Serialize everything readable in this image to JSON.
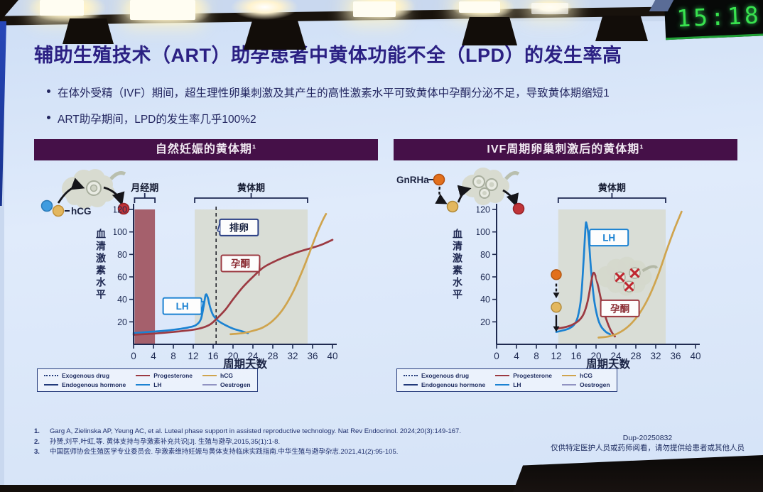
{
  "environment": {
    "clock_time": "15:18"
  },
  "slide": {
    "title": "辅助生殖技术（ART）助孕患者中黄体功能不全（LPD）的发生率高",
    "bullets": [
      "在体外受精（IVF）期间，超生理性卵巢刺激及其产生的高性激素水平可致黄体中孕酮分泌不足，导致黄体期缩短1",
      "ART助孕期间，LPD的发生率几乎100%2"
    ],
    "references": [
      {
        "num": "1.",
        "text": "Garg A, Zielinska AP, Yeung AC, et al. Luteal phase support in assisted reproductive technology. Nat Rev Endocrinol. 2024;20(3):149-167."
      },
      {
        "num": "2.",
        "text": "孙赟,刘平,叶虹,等. 黄体支持与孕激素补充共识[J]. 生殖与避孕,2015,35(1):1-8."
      },
      {
        "num": "3.",
        "text": "中国医师协会生殖医学专业委员会. 孕激素维持妊娠与黄体支持临床实践指南.中华生殖与避孕杂志.2021,41(2):95-105."
      }
    ],
    "footer": {
      "code": "Dup-20250832",
      "audience": "仅供特定医护人员或药师阅看，请勿提供给患者或其他人员"
    }
  },
  "panels": [
    {
      "header": "自然妊娠的黄体期¹",
      "illustration": {
        "label": "hCG"
      }
    },
    {
      "header": "IVF周期卵巢刺激后的黄体期¹",
      "illustration": {
        "label": "GnRHa"
      }
    }
  ],
  "legend_items": [
    {
      "label": "Exogenous drug",
      "color": "#223a7a",
      "dash": "dotted"
    },
    {
      "label": "Endogenous hormone",
      "color": "#223a7a"
    },
    {
      "label": "Progesterone",
      "color": "#9c3a42"
    },
    {
      "label": "LH",
      "color": "#1b82d2"
    },
    {
      "label": "hCG",
      "color": "#cfa44e"
    },
    {
      "label": "Oestrogen",
      "color": "#9193c2"
    }
  ],
  "colors": {
    "panel_header": "#451048",
    "title": "#2b2083",
    "menses_bar": "#a5606c",
    "luteal_shade": "#d8dcd2",
    "lh": "#1b82d2",
    "progesterone": "#9c3a42",
    "hcg": "#cfa44e",
    "led_green": "#38e24e"
  },
  "chart_data": [
    {
      "type": "line",
      "title": "自然妊娠的黄体期",
      "xlabel": "周期天数",
      "ylabel": "血清激素水平",
      "xlim": [
        0,
        40
      ],
      "ylim": [
        0,
        120
      ],
      "x_ticks": [
        0,
        4,
        8,
        12,
        16,
        20,
        24,
        28,
        32,
        36,
        40
      ],
      "y_ticks": [
        20,
        40,
        60,
        80,
        100,
        120
      ],
      "bar": {
        "x0": 0.2,
        "x1": 4.3,
        "color": "#a5606c",
        "label": "月经期"
      },
      "shade": {
        "x0": 12.3,
        "x1": 35,
        "color": "#d8dcd2"
      },
      "vline": {
        "x": 16.6
      },
      "brackets": [
        {
          "x0": 0.2,
          "x1": 4.3,
          "label": "月经期"
        },
        {
          "x0": 12.3,
          "x1": 35,
          "label": "黄体期"
        }
      ],
      "series": [
        {
          "name": "LH",
          "color": "#1b82d2",
          "points": [
            [
              0,
              10
            ],
            [
              3,
              11
            ],
            [
              6,
              12
            ],
            [
              9,
              13.5
            ],
            [
              11,
              15
            ],
            [
              12.5,
              17
            ],
            [
              13.5,
              22
            ],
            [
              14.1,
              34
            ],
            [
              14.5,
              44
            ],
            [
              14.9,
              42
            ],
            [
              15.4,
              33
            ],
            [
              16,
              26
            ],
            [
              17,
              21
            ],
            [
              18.5,
              17
            ],
            [
              20,
              14
            ],
            [
              21.5,
              12
            ],
            [
              23,
              10
            ]
          ]
        },
        {
          "name": "Progesterone",
          "color": "#9c3a42",
          "points": [
            [
              0,
              8.5
            ],
            [
              4,
              9.5
            ],
            [
              8,
              11
            ],
            [
              12,
              13
            ],
            [
              14,
              15
            ],
            [
              15.5,
              18
            ],
            [
              17,
              24
            ],
            [
              18.5,
              31
            ],
            [
              20,
              40
            ],
            [
              22,
              51
            ],
            [
              24,
              60
            ],
            [
              26,
              68
            ],
            [
              28,
              73
            ],
            [
              30,
              77
            ],
            [
              33,
              82
            ],
            [
              36,
              86
            ],
            [
              38,
              89
            ],
            [
              40,
              93
            ]
          ]
        },
        {
          "name": "hCG",
          "color": "#cfa44e",
          "points": [
            [
              19.5,
              9
            ],
            [
              22,
              10
            ],
            [
              24,
              12
            ],
            [
              26,
              15
            ],
            [
              28,
              21
            ],
            [
              30,
              31
            ],
            [
              32,
              46
            ],
            [
              34,
              66
            ],
            [
              35.5,
              83
            ],
            [
              36.8,
              98
            ],
            [
              38,
              110
            ],
            [
              38.7,
              116
            ]
          ]
        }
      ],
      "callouts": [
        {
          "text": "排卵",
          "color": "#2a3f85",
          "tcolor": "#16203f",
          "x": 21.2,
          "y": 104,
          "tx": 16.9,
          "ty": 101,
          "tail": "left"
        },
        {
          "text": "孕酮",
          "color": "#9c3a42",
          "tcolor": "#8c2f36",
          "x": 21.5,
          "y": 72,
          "tx": 25.2,
          "ty": 61,
          "tail": "right"
        },
        {
          "text": "LH",
          "color": "#1b82d2",
          "tcolor": "#1b82d2",
          "x": 9.8,
          "y": 34,
          "tx": 14,
          "ty": 38,
          "tail": "right"
        }
      ],
      "annotations": []
    },
    {
      "type": "line",
      "title": "IVF周期卵巢刺激后的黄体期",
      "xlabel": "周期天数",
      "ylabel": "血清激素水平",
      "xlim": [
        0,
        40
      ],
      "ylim": [
        0,
        120
      ],
      "x_ticks": [
        0,
        4,
        8,
        12,
        16,
        20,
        24,
        28,
        32,
        36,
        40
      ],
      "y_ticks": [
        20,
        40,
        60,
        80,
        100,
        120
      ],
      "shade": {
        "x0": 12.4,
        "x1": 34,
        "color": "#d8dcd2"
      },
      "brackets": [
        {
          "x0": 12.4,
          "x1": 34,
          "label": "黄体期"
        }
      ],
      "series": [
        {
          "name": "LH",
          "color": "#1b82d2",
          "points": [
            [
              12,
              11
            ],
            [
              13,
              12
            ],
            [
              14.5,
              14
            ],
            [
              15.5,
              17
            ],
            [
              16.3,
              24
            ],
            [
              17,
              42
            ],
            [
              17.5,
              75
            ],
            [
              17.9,
              105
            ],
            [
              18.1,
              107
            ],
            [
              18.5,
              96
            ],
            [
              19,
              66
            ],
            [
              19.6,
              40
            ],
            [
              20.3,
              24
            ],
            [
              21,
              16
            ],
            [
              22,
              11
            ],
            [
              22.8,
              9
            ]
          ]
        },
        {
          "name": "Progesterone",
          "color": "#9c3a42",
          "points": [
            [
              12,
              14
            ],
            [
              13.5,
              15
            ],
            [
              15,
              17
            ],
            [
              16.5,
              21
            ],
            [
              17.5,
              27
            ],
            [
              18.3,
              38
            ],
            [
              19,
              55
            ],
            [
              19.4,
              63
            ],
            [
              19.8,
              62
            ],
            [
              20.4,
              52
            ],
            [
              21.2,
              36
            ],
            [
              22,
              23
            ],
            [
              23,
              12
            ],
            [
              23.8,
              7
            ]
          ]
        },
        {
          "name": "hCG",
          "color": "#cfa44e",
          "points": [
            [
              20.5,
              6
            ],
            [
              22.5,
              7
            ],
            [
              24.5,
              10
            ],
            [
              26.5,
              16
            ],
            [
              28.5,
              26
            ],
            [
              30.5,
              41
            ],
            [
              32.5,
              62
            ],
            [
              34.3,
              85
            ],
            [
              35.8,
              103
            ],
            [
              37.2,
              118
            ]
          ]
        }
      ],
      "callouts": [
        {
          "text": "LH",
          "color": "#1b82d2",
          "tcolor": "#1b82d2",
          "x": 22.6,
          "y": 95,
          "tx": 18.7,
          "ty": 99,
          "tail": "left"
        },
        {
          "text": "孕酮",
          "color": "#9c3a42",
          "tcolor": "#8c2f36",
          "x": 24.8,
          "y": 32,
          "tx": 20.9,
          "ty": 42,
          "tail": "left"
        }
      ],
      "annotations": [
        {
          "type": "dot",
          "x": 12,
          "y": 62,
          "r": 7,
          "color": "#e2701d",
          "stroke": "#b05510"
        },
        {
          "type": "dasharrow",
          "x": 12,
          "y0": 54,
          "y1": 41
        },
        {
          "type": "dot",
          "x": 12,
          "y": 33,
          "r": 7,
          "color": "#e3b75f",
          "stroke": "#b08a3a"
        },
        {
          "type": "arrow",
          "x": 12,
          "y0": 26,
          "y1": 11
        },
        {
          "type": "ovary",
          "x": 26.5,
          "y": 59
        }
      ]
    }
  ]
}
